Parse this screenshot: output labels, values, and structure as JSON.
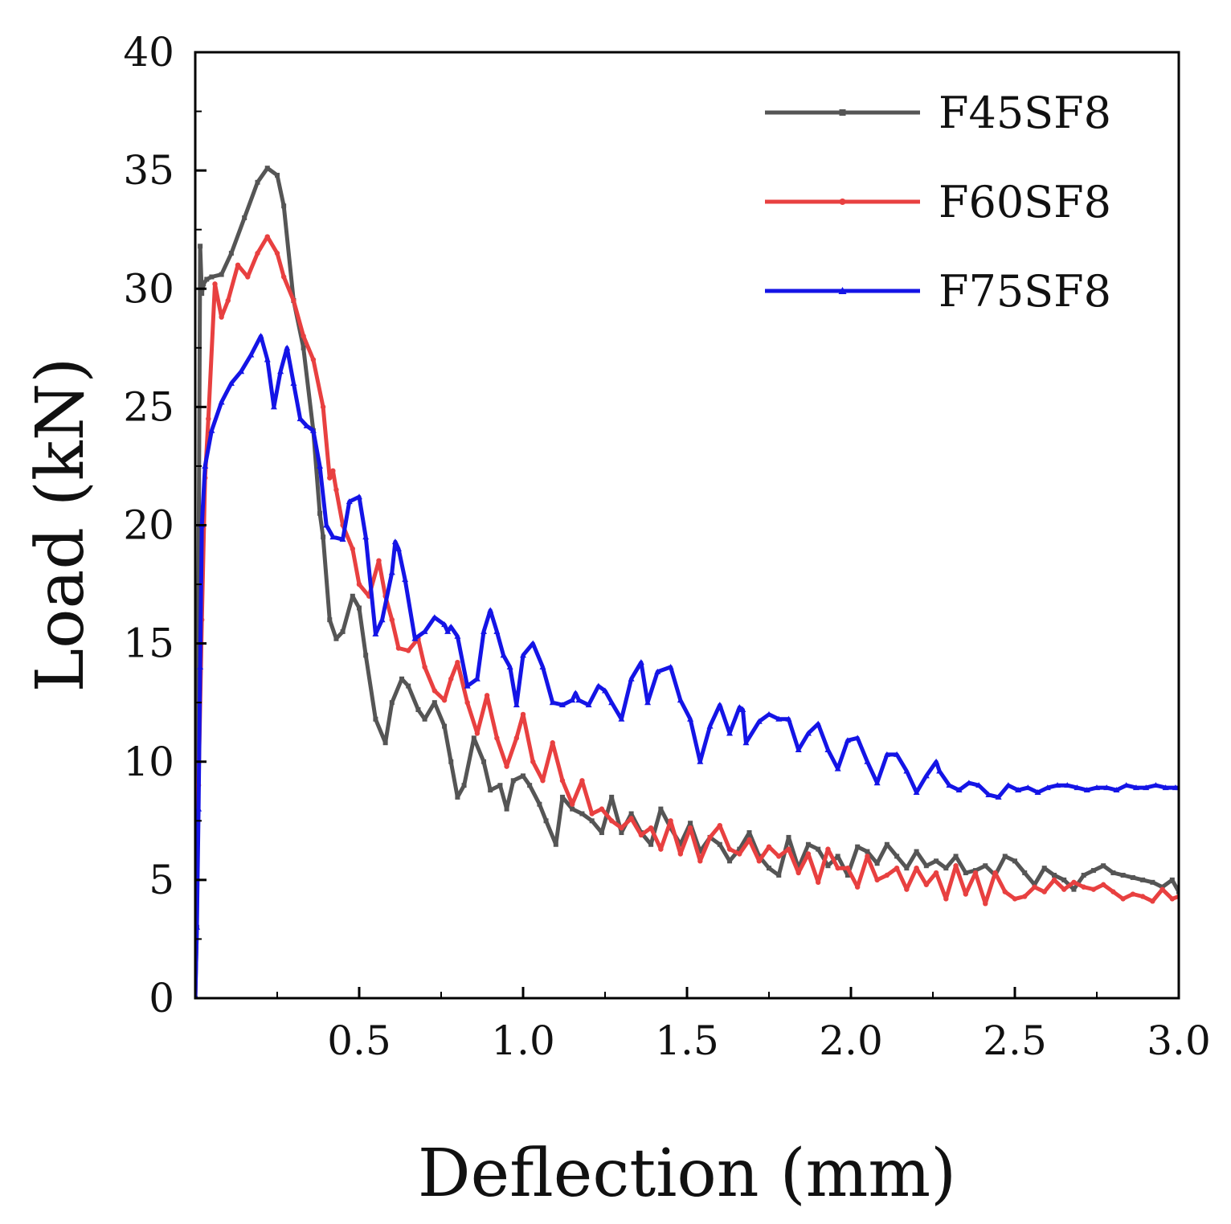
{
  "chart_data": {
    "type": "line",
    "title": "",
    "xlabel": "Deflection (mm)",
    "ylabel": "Load (kN)",
    "xlim": [
      0,
      3.0
    ],
    "ylim": [
      0,
      40
    ],
    "xticks": [
      0.5,
      1.0,
      1.5,
      2.0,
      2.5,
      3.0
    ],
    "xtick_labels": [
      "0.5",
      "1.0",
      "1.5",
      "2.0",
      "2.5",
      "3.0"
    ],
    "yticks": [
      0,
      5,
      10,
      15,
      20,
      25,
      30,
      35,
      40
    ],
    "ytick_labels": [
      "0",
      "5",
      "10",
      "15",
      "20",
      "25",
      "30",
      "35",
      "40"
    ],
    "grid": false,
    "legend_position": "top-right",
    "series": [
      {
        "name": "F45SF8",
        "color": "#555555",
        "x": [
          0.0,
          0.005,
          0.015,
          0.02,
          0.025,
          0.035,
          0.05,
          0.08,
          0.11,
          0.15,
          0.19,
          0.22,
          0.25,
          0.27,
          0.3,
          0.33,
          0.36,
          0.38,
          0.39,
          0.41,
          0.43,
          0.45,
          0.48,
          0.5,
          0.52,
          0.55,
          0.58,
          0.6,
          0.63,
          0.65,
          0.68,
          0.7,
          0.73,
          0.76,
          0.78,
          0.8,
          0.82,
          0.85,
          0.88,
          0.9,
          0.93,
          0.95,
          0.97,
          1.0,
          1.02,
          1.05,
          1.07,
          1.1,
          1.12,
          1.15,
          1.18,
          1.21,
          1.24,
          1.27,
          1.3,
          1.33,
          1.36,
          1.39,
          1.42,
          1.45,
          1.48,
          1.51,
          1.54,
          1.57,
          1.6,
          1.63,
          1.66,
          1.69,
          1.72,
          1.75,
          1.78,
          1.81,
          1.84,
          1.87,
          1.9,
          1.93,
          1.96,
          1.99,
          2.02,
          2.05,
          2.08,
          2.11,
          2.14,
          2.17,
          2.2,
          2.23,
          2.26,
          2.29,
          2.32,
          2.35,
          2.38,
          2.41,
          2.44,
          2.47,
          2.5,
          2.53,
          2.56,
          2.59,
          2.62,
          2.65,
          2.68,
          2.71,
          2.74,
          2.77,
          2.8,
          2.83,
          2.86,
          2.89,
          2.92,
          2.95,
          2.98,
          3.0
        ],
        "y": [
          0.0,
          3.0,
          31.8,
          29.8,
          30.2,
          30.4,
          30.5,
          30.6,
          31.5,
          33.0,
          34.5,
          35.1,
          34.8,
          33.5,
          29.5,
          27.5,
          24.0,
          20.5,
          19.5,
          16.0,
          15.2,
          15.5,
          17.0,
          16.5,
          14.5,
          11.8,
          10.8,
          12.5,
          13.5,
          13.2,
          12.2,
          11.8,
          12.5,
          11.5,
          10.0,
          8.5,
          9.0,
          11.0,
          10.0,
          8.8,
          9.0,
          8.0,
          9.2,
          9.4,
          9.0,
          8.2,
          7.5,
          6.5,
          8.5,
          8.0,
          7.8,
          7.5,
          7.0,
          8.5,
          7.0,
          7.8,
          7.0,
          6.5,
          8.0,
          7.2,
          6.5,
          7.4,
          6.2,
          6.8,
          6.5,
          5.8,
          6.3,
          7.0,
          6.0,
          5.5,
          5.2,
          6.8,
          5.5,
          6.5,
          6.3,
          5.6,
          6.0,
          5.2,
          6.4,
          6.2,
          5.7,
          6.5,
          6.0,
          5.5,
          6.2,
          5.6,
          5.8,
          5.5,
          6.0,
          5.3,
          5.4,
          5.6,
          5.2,
          6.0,
          5.8,
          5.3,
          4.8,
          5.5,
          5.2,
          5.0,
          4.6,
          5.2,
          5.4,
          5.6,
          5.3,
          5.2,
          5.1,
          5.0,
          4.9,
          4.7,
          5.0,
          4.5
        ]
      },
      {
        "name": "F60SF8",
        "color": "#e84040",
        "x": [
          0.0,
          0.005,
          0.01,
          0.02,
          0.03,
          0.04,
          0.06,
          0.08,
          0.1,
          0.13,
          0.16,
          0.19,
          0.22,
          0.25,
          0.27,
          0.3,
          0.33,
          0.36,
          0.39,
          0.41,
          0.42,
          0.43,
          0.45,
          0.48,
          0.5,
          0.53,
          0.56,
          0.58,
          0.6,
          0.62,
          0.65,
          0.68,
          0.7,
          0.73,
          0.76,
          0.78,
          0.8,
          0.83,
          0.86,
          0.89,
          0.92,
          0.95,
          0.98,
          1.0,
          1.03,
          1.06,
          1.09,
          1.12,
          1.15,
          1.18,
          1.21,
          1.24,
          1.27,
          1.3,
          1.33,
          1.36,
          1.39,
          1.42,
          1.45,
          1.48,
          1.51,
          1.54,
          1.57,
          1.6,
          1.63,
          1.66,
          1.69,
          1.72,
          1.75,
          1.78,
          1.81,
          1.84,
          1.87,
          1.9,
          1.93,
          1.96,
          1.99,
          2.02,
          2.05,
          2.08,
          2.11,
          2.14,
          2.17,
          2.2,
          2.23,
          2.26,
          2.29,
          2.32,
          2.35,
          2.38,
          2.41,
          2.44,
          2.47,
          2.5,
          2.53,
          2.56,
          2.59,
          2.62,
          2.65,
          2.68,
          2.71,
          2.74,
          2.77,
          2.8,
          2.83,
          2.86,
          2.89,
          2.92,
          2.95,
          2.98,
          3.0
        ],
        "y": [
          0.0,
          5.0,
          9.0,
          16.0,
          22.0,
          24.5,
          30.2,
          28.8,
          29.5,
          31.0,
          30.5,
          31.5,
          32.2,
          31.5,
          30.5,
          29.5,
          28.0,
          27.0,
          25.0,
          22.0,
          22.3,
          21.5,
          20.0,
          19.0,
          17.5,
          17.0,
          18.5,
          17.0,
          16.0,
          14.8,
          14.7,
          15.2,
          14.0,
          13.0,
          12.6,
          13.5,
          14.2,
          12.5,
          11.2,
          12.8,
          11.0,
          9.8,
          11.0,
          12.0,
          10.0,
          9.2,
          10.8,
          9.2,
          8.2,
          9.2,
          7.8,
          8.0,
          7.5,
          7.2,
          7.6,
          6.9,
          7.2,
          6.3,
          7.5,
          6.1,
          7.2,
          5.8,
          6.8,
          7.3,
          6.3,
          6.1,
          6.7,
          5.8,
          6.4,
          6.0,
          6.3,
          5.3,
          6.1,
          4.9,
          6.3,
          5.5,
          5.5,
          4.7,
          6.0,
          5.0,
          5.2,
          5.5,
          4.6,
          5.5,
          4.8,
          5.3,
          4.2,
          5.6,
          4.4,
          5.3,
          4.0,
          5.3,
          4.5,
          4.2,
          4.3,
          4.7,
          4.5,
          5.0,
          4.6,
          4.9,
          4.7,
          4.6,
          4.8,
          4.5,
          4.2,
          4.4,
          4.3,
          4.1,
          4.6,
          4.2,
          4.3
        ]
      },
      {
        "name": "F75SF8",
        "color": "#1414e6",
        "x": [
          0.0,
          0.005,
          0.01,
          0.015,
          0.02,
          0.03,
          0.05,
          0.08,
          0.11,
          0.14,
          0.17,
          0.2,
          0.22,
          0.24,
          0.26,
          0.28,
          0.3,
          0.32,
          0.34,
          0.36,
          0.38,
          0.4,
          0.42,
          0.45,
          0.47,
          0.5,
          0.52,
          0.55,
          0.57,
          0.6,
          0.61,
          0.62,
          0.64,
          0.67,
          0.7,
          0.73,
          0.76,
          0.77,
          0.78,
          0.8,
          0.83,
          0.86,
          0.88,
          0.9,
          0.92,
          0.94,
          0.96,
          0.98,
          1.0,
          1.03,
          1.06,
          1.09,
          1.12,
          1.15,
          1.16,
          1.17,
          1.2,
          1.23,
          1.25,
          1.27,
          1.3,
          1.33,
          1.36,
          1.38,
          1.41,
          1.45,
          1.48,
          1.51,
          1.54,
          1.57,
          1.6,
          1.63,
          1.66,
          1.67,
          1.68,
          1.72,
          1.75,
          1.78,
          1.81,
          1.84,
          1.87,
          1.9,
          1.93,
          1.96,
          1.99,
          2.02,
          2.05,
          2.08,
          2.11,
          2.14,
          2.17,
          2.2,
          2.23,
          2.26,
          2.27,
          2.3,
          2.33,
          2.36,
          2.39,
          2.42,
          2.45,
          2.48,
          2.51,
          2.54,
          2.57,
          2.6,
          2.63,
          2.66,
          2.69,
          2.72,
          2.75,
          2.78,
          2.81,
          2.84,
          2.87,
          2.9,
          2.93,
          2.96,
          2.99,
          3.0
        ],
        "y": [
          0.0,
          3.0,
          8.0,
          14.0,
          20.0,
          22.5,
          24.0,
          25.2,
          26.0,
          26.5,
          27.2,
          28.0,
          27.0,
          25.0,
          26.5,
          27.5,
          26.0,
          24.5,
          24.2,
          24.0,
          22.5,
          20.0,
          19.5,
          19.4,
          21.0,
          21.2,
          19.5,
          15.4,
          16.0,
          18.0,
          19.3,
          19.0,
          17.7,
          15.2,
          15.5,
          16.1,
          15.8,
          15.5,
          15.7,
          15.3,
          13.2,
          13.5,
          15.5,
          16.4,
          15.5,
          14.5,
          14.0,
          12.4,
          14.5,
          15.0,
          14.0,
          12.5,
          12.4,
          12.6,
          12.9,
          12.6,
          12.4,
          13.2,
          13.0,
          12.5,
          11.8,
          13.5,
          14.2,
          12.5,
          13.8,
          14.0,
          12.6,
          11.8,
          10.0,
          11.5,
          12.4,
          11.2,
          12.3,
          12.2,
          10.8,
          11.7,
          12.0,
          11.8,
          11.8,
          10.5,
          11.2,
          11.6,
          10.5,
          9.7,
          10.9,
          11.0,
          10.0,
          9.1,
          10.3,
          10.3,
          9.6,
          8.7,
          9.4,
          10.0,
          9.6,
          9.0,
          8.8,
          9.1,
          9.0,
          8.6,
          8.5,
          9.0,
          8.8,
          8.9,
          8.7,
          8.9,
          9.0,
          9.0,
          8.9,
          8.8,
          8.9,
          8.9,
          8.8,
          9.0,
          8.9,
          8.9,
          9.0,
          8.9,
          8.9,
          8.9
        ]
      }
    ]
  }
}
